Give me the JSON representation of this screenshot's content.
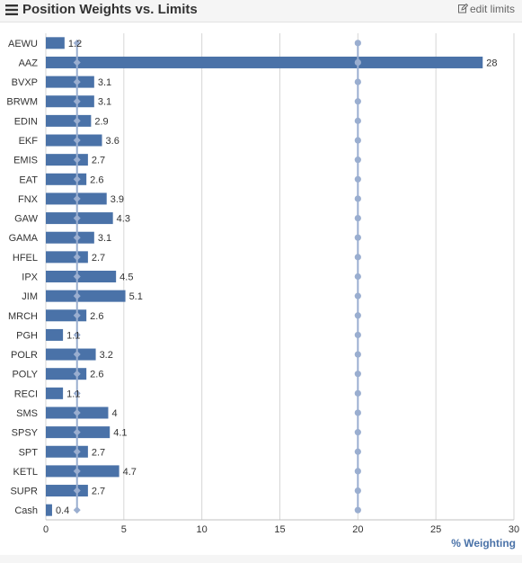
{
  "header": {
    "title": "Position Weights vs. Limits",
    "title_icon": "list-icon",
    "edit_label": "edit limits",
    "edit_icon": "edit-icon"
  },
  "colors": {
    "bar": "#4a72a8",
    "limit_marker": "#9aaed0",
    "grid": "#d6d6d6",
    "axis_title": "#4a72a8",
    "text": "#333333"
  },
  "chart_data": {
    "type": "bar",
    "orientation": "horizontal",
    "categories": [
      "AEWU",
      "AAZ",
      "BVXP",
      "BRWM",
      "EDIN",
      "EKF",
      "EMIS",
      "EAT",
      "FNX",
      "GAW",
      "GAMA",
      "HFEL",
      "IPX",
      "JIM",
      "MRCH",
      "PGH",
      "POLR",
      "POLY",
      "RECI",
      "SMS",
      "SPSY",
      "SPT",
      "KETL",
      "SUPR",
      "Cash"
    ],
    "series": [
      {
        "values": [
          1.2,
          28,
          3.1,
          3.1,
          2.9,
          3.6,
          2.7,
          2.6,
          3.9,
          4.3,
          3.1,
          2.7,
          4.5,
          5.1,
          2.6,
          1.1,
          3.2,
          2.6,
          1.1,
          4,
          4.1,
          2.7,
          4.7,
          2.7,
          0.4
        ]
      }
    ],
    "limit_lines": [
      2,
      20
    ],
    "value_labels": [
      "1.2",
      "28",
      "3.1",
      "3.1",
      "2.9",
      "3.6",
      "2.7",
      "2.6",
      "3.9",
      "4.3",
      "3.1",
      "2.7",
      "4.5",
      "5.1",
      "2.6",
      "1.1",
      "3.2",
      "2.6",
      "1.1",
      "4",
      "4.1",
      "2.7",
      "4.7",
      "2.7",
      "0.4"
    ],
    "xlim": [
      0,
      30
    ],
    "xticks": [
      "0",
      "5",
      "10",
      "15",
      "20",
      "25",
      "30"
    ],
    "xlabel": "% Weighting",
    "grid": true,
    "legend": "none"
  }
}
